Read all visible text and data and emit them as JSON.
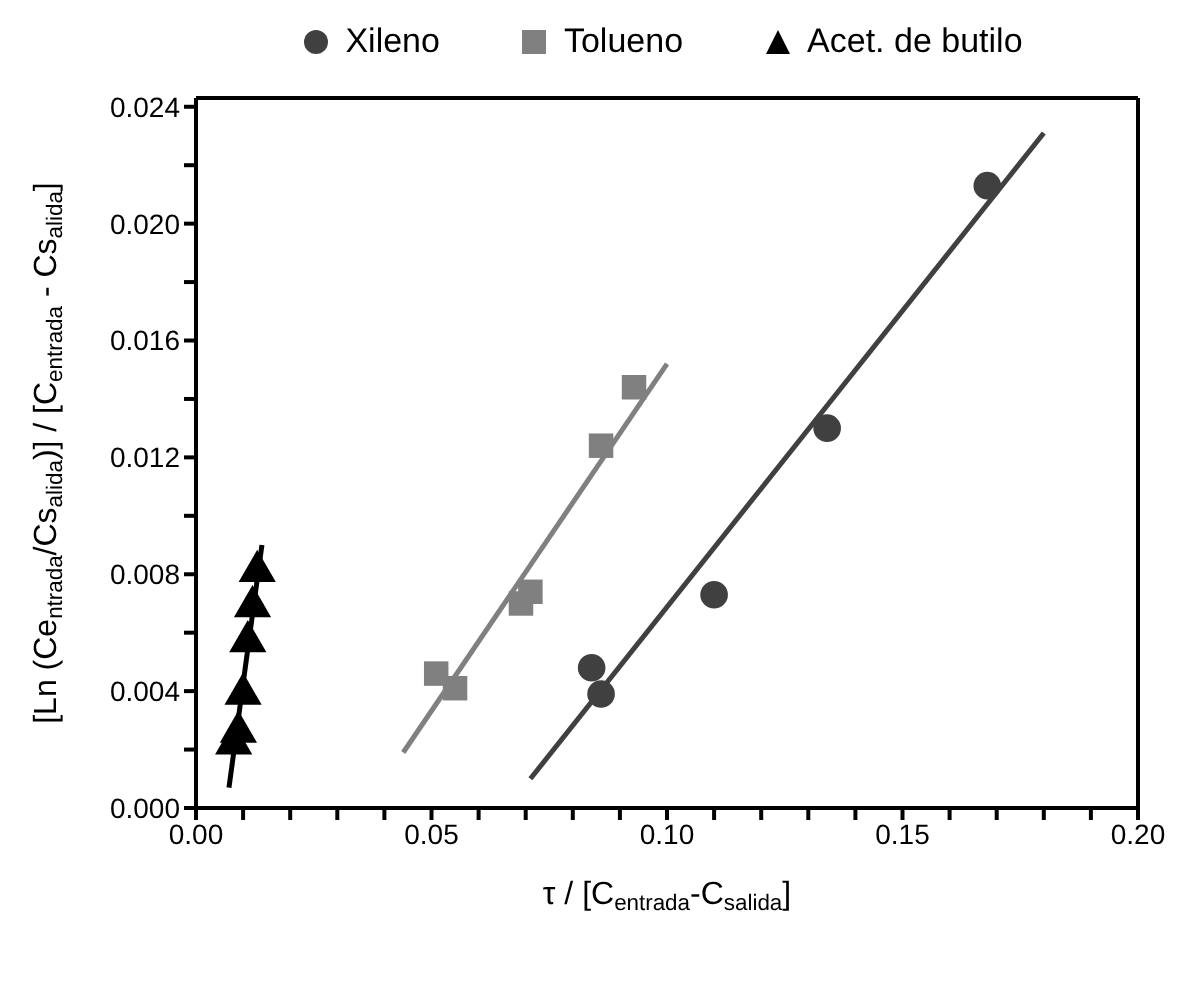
{
  "chart_data": {
    "type": "scatter",
    "xlabel": "τ / [C$_{entrada}$-C$_{salida}$]",
    "ylabel": "[Ln (Ce$_{ntrada}$/Cs$_{alida}$)] / [C$_{entrada}$ - Cs$_{alida}$]",
    "xlim": [
      0,
      0.2
    ],
    "ylim": [
      0,
      0.0243
    ],
    "xticks": [
      {
        "value": 0,
        "label": "0.00"
      },
      {
        "value": 0.01,
        "label": null
      },
      {
        "value": 0.02,
        "label": null
      },
      {
        "value": 0.03,
        "label": null
      },
      {
        "value": 0.04,
        "label": null
      },
      {
        "value": 0.05,
        "label": "0.05"
      },
      {
        "value": 0.06,
        "label": null
      },
      {
        "value": 0.07,
        "label": null
      },
      {
        "value": 0.08,
        "label": null
      },
      {
        "value": 0.09,
        "label": null
      },
      {
        "value": 0.1,
        "label": "0.10"
      },
      {
        "value": 0.11,
        "label": null
      },
      {
        "value": 0.12,
        "label": null
      },
      {
        "value": 0.13,
        "label": null
      },
      {
        "value": 0.14,
        "label": null
      },
      {
        "value": 0.15,
        "label": "0.15"
      },
      {
        "value": 0.16,
        "label": null
      },
      {
        "value": 0.17,
        "label": null
      },
      {
        "value": 0.18,
        "label": null
      },
      {
        "value": 0.19,
        "label": null
      },
      {
        "value": 0.2,
        "label": "0.20"
      }
    ],
    "yticks": [
      {
        "value": 0,
        "label": "0.000"
      },
      {
        "value": 0.002,
        "label": null
      },
      {
        "value": 0.004,
        "label": "0.004"
      },
      {
        "value": 0.006,
        "label": null
      },
      {
        "value": 0.008,
        "label": "0.008"
      },
      {
        "value": 0.01,
        "label": null
      },
      {
        "value": 0.012,
        "label": "0.012"
      },
      {
        "value": 0.014,
        "label": null
      },
      {
        "value": 0.016,
        "label": "0.016"
      },
      {
        "value": 0.018,
        "label": null
      },
      {
        "value": 0.02,
        "label": "0.020"
      },
      {
        "value": 0.022,
        "label": null
      },
      {
        "value": 0.024,
        "label": "0.024"
      }
    ],
    "legend": "top",
    "series": [
      {
        "name": "Xileno",
        "color": "#404040",
        "marker": "circle",
        "x": [
          0.084,
          0.086,
          0.11,
          0.134,
          0.168
        ],
        "values": [
          0.0048,
          0.0039,
          0.0073,
          0.013,
          0.0213
        ]
      },
      {
        "name": "Tolueno",
        "color": "#808080",
        "marker": "square",
        "x": [
          0.051,
          0.055,
          0.069,
          0.071,
          0.086,
          0.093
        ],
        "values": [
          0.0046,
          0.0041,
          0.007,
          0.0074,
          0.0124,
          0.0144
        ]
      },
      {
        "name": "Acet. de butilo",
        "color": "#000000",
        "marker": "triangle",
        "x": [
          0.008,
          0.009,
          0.01,
          0.011,
          0.012,
          0.013
        ],
        "values": [
          0.0022,
          0.0026,
          0.0039,
          0.0057,
          0.0069,
          0.0081
        ]
      },
      {
        "type": "line",
        "color": "#404040",
        "x": [
          0.071,
          0.18
        ],
        "values": [
          0.001,
          0.0231
        ]
      },
      {
        "type": "line",
        "color": "#808080",
        "x": [
          0.044,
          0.1
        ],
        "values": [
          0.0019,
          0.0152
        ]
      },
      {
        "type": "line",
        "color": "#000000",
        "x": [
          0.007,
          0.014
        ],
        "values": [
          0.0007,
          0.009
        ]
      }
    ]
  }
}
